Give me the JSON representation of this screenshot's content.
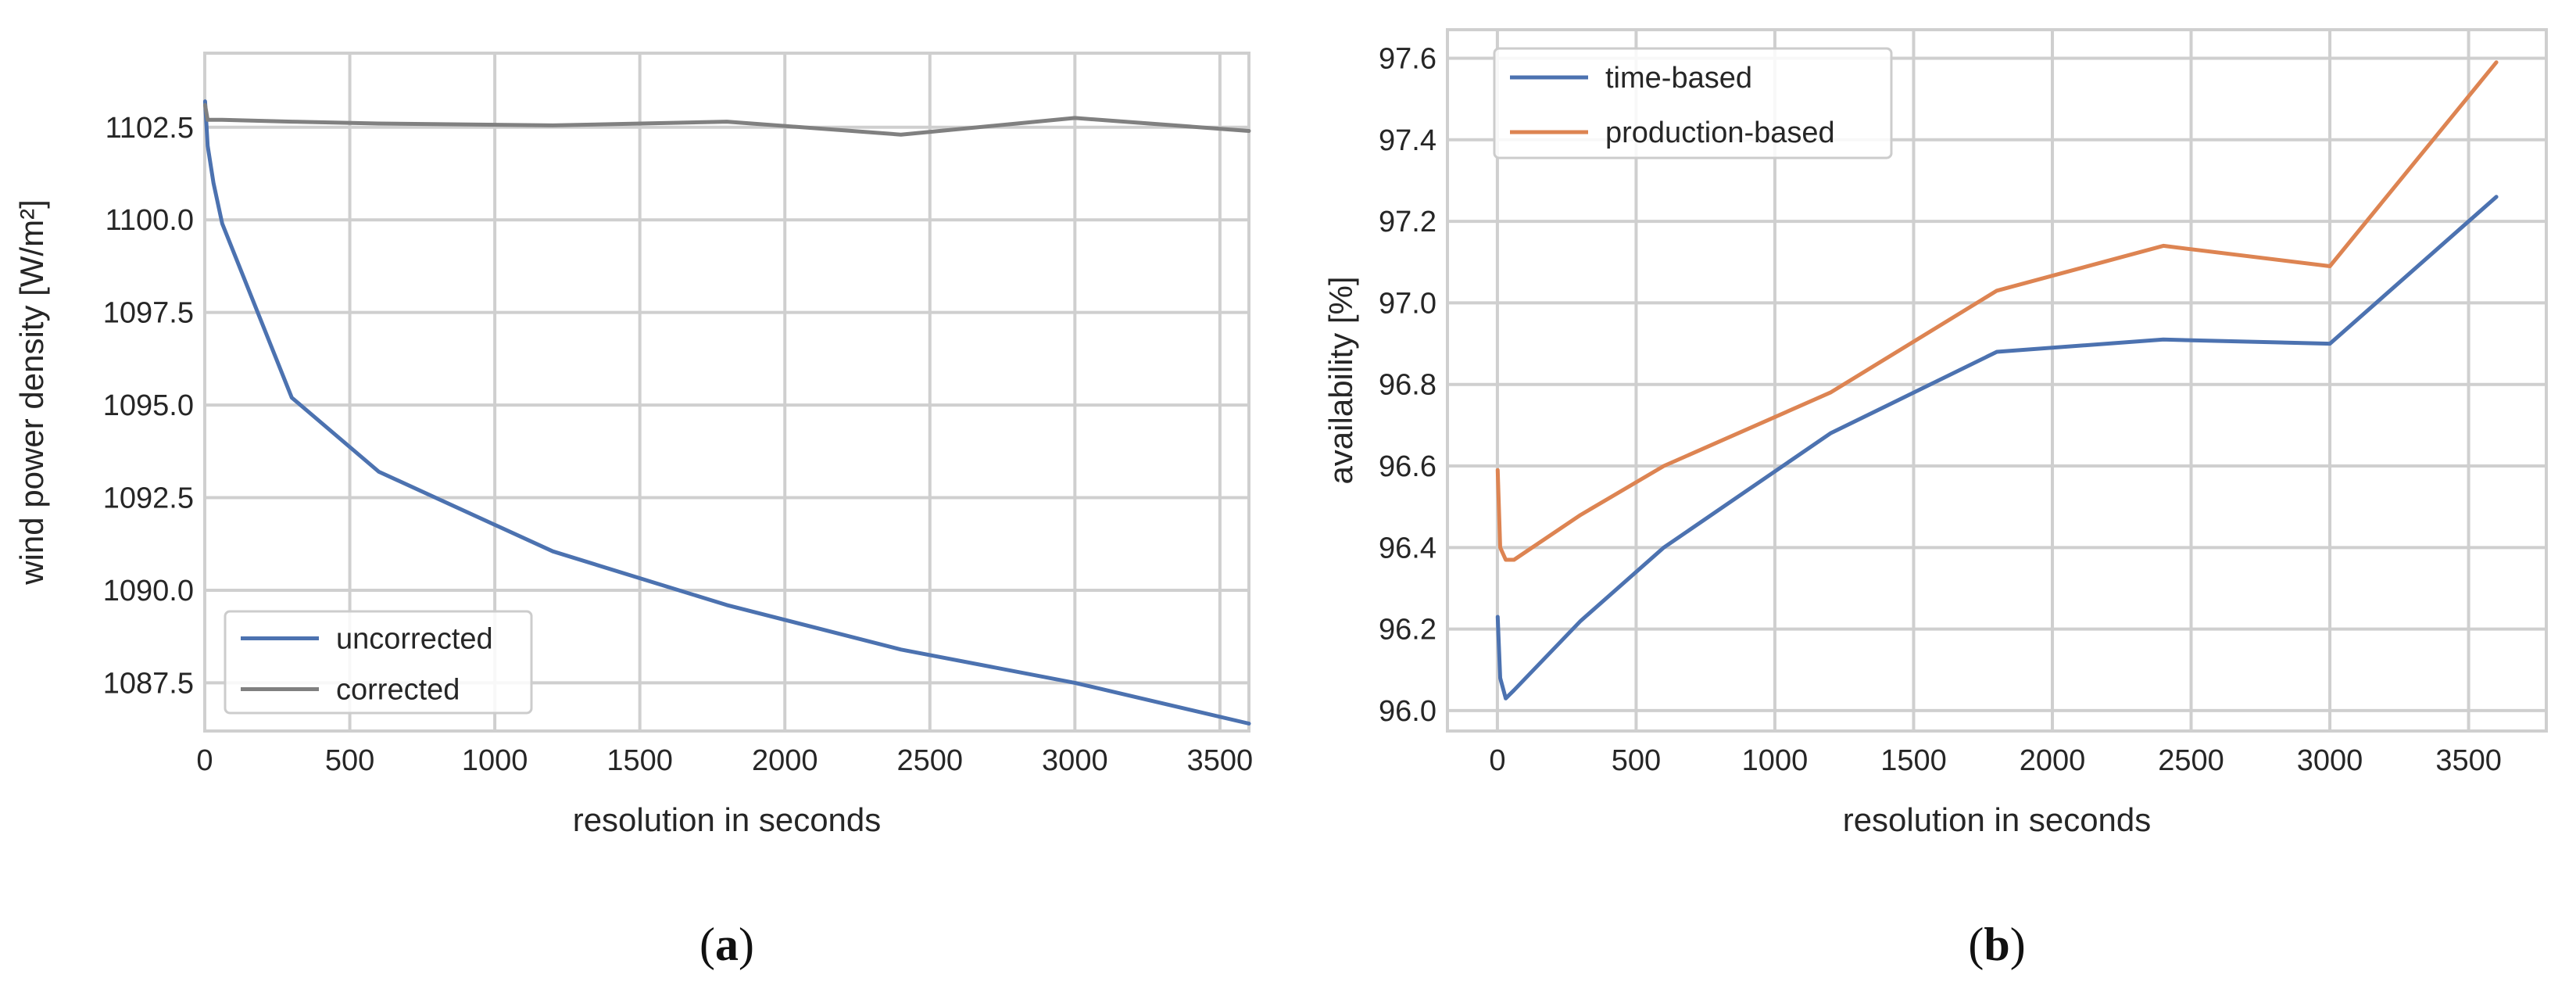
{
  "chart_data": [
    {
      "type": "line",
      "panel_label": "a",
      "title": "",
      "xlabel": "resolution in seconds",
      "ylabel": "wind power density [W/m²]",
      "xlim": [
        0,
        3600
      ],
      "ylim": [
        1086.2,
        1104.5
      ],
      "xticks": [
        0,
        500,
        1000,
        1500,
        2000,
        2500,
        3000,
        3500
      ],
      "yticks": [
        1087.5,
        1090.0,
        1092.5,
        1095.0,
        1097.5,
        1100.0,
        1102.5
      ],
      "ytick_labels": [
        "1087.5",
        "1090.0",
        "1092.5",
        "1095.0",
        "1097.5",
        "1100.0",
        "1102.5"
      ],
      "grid": true,
      "legend_position": "lower-left",
      "series": [
        {
          "name": "uncorrected",
          "color": "#4C72B0",
          "x": [
            1,
            10,
            30,
            60,
            300,
            600,
            1200,
            1800,
            2400,
            3000,
            3600
          ],
          "y": [
            1103.2,
            1102.0,
            1101.0,
            1099.9,
            1095.2,
            1093.2,
            1091.05,
            1089.6,
            1088.4,
            1087.5,
            1086.4
          ]
        },
        {
          "name": "corrected",
          "color": "#808080",
          "x": [
            1,
            10,
            30,
            60,
            300,
            600,
            1200,
            1800,
            2400,
            3000,
            3600
          ],
          "y": [
            1103.1,
            1102.7,
            1102.7,
            1102.7,
            1102.65,
            1102.6,
            1102.55,
            1102.65,
            1102.3,
            1102.75,
            1102.4
          ]
        }
      ]
    },
    {
      "type": "line",
      "panel_label": "b",
      "title": "",
      "xlabel": "resolution in seconds",
      "ylabel": "availability [%]",
      "xlim": [
        -180,
        3780
      ],
      "ylim": [
        95.95,
        97.67
      ],
      "xticks": [
        0,
        500,
        1000,
        1500,
        2000,
        2500,
        3000,
        3500
      ],
      "yticks": [
        96.0,
        96.2,
        96.4,
        96.6,
        96.8,
        97.0,
        97.2,
        97.4,
        97.6
      ],
      "ytick_labels": [
        "96.0",
        "96.2",
        "96.4",
        "96.6",
        "96.8",
        "97.0",
        "97.2",
        "97.4",
        "97.6"
      ],
      "grid": true,
      "legend_position": "upper-left",
      "series": [
        {
          "name": "time-based",
          "color": "#4C72B0",
          "x": [
            1,
            10,
            30,
            60,
            300,
            600,
            1200,
            1800,
            2400,
            3000,
            3600
          ],
          "y": [
            96.23,
            96.08,
            96.03,
            96.05,
            96.22,
            96.4,
            96.68,
            96.88,
            96.91,
            96.9,
            97.26
          ]
        },
        {
          "name": "production-based",
          "color": "#DD8452",
          "x": [
            1,
            10,
            30,
            60,
            300,
            600,
            1200,
            1800,
            2400,
            3000,
            3600
          ],
          "y": [
            96.59,
            96.4,
            96.37,
            96.37,
            96.48,
            96.6,
            96.78,
            97.03,
            97.14,
            97.09,
            97.59
          ]
        }
      ]
    }
  ]
}
